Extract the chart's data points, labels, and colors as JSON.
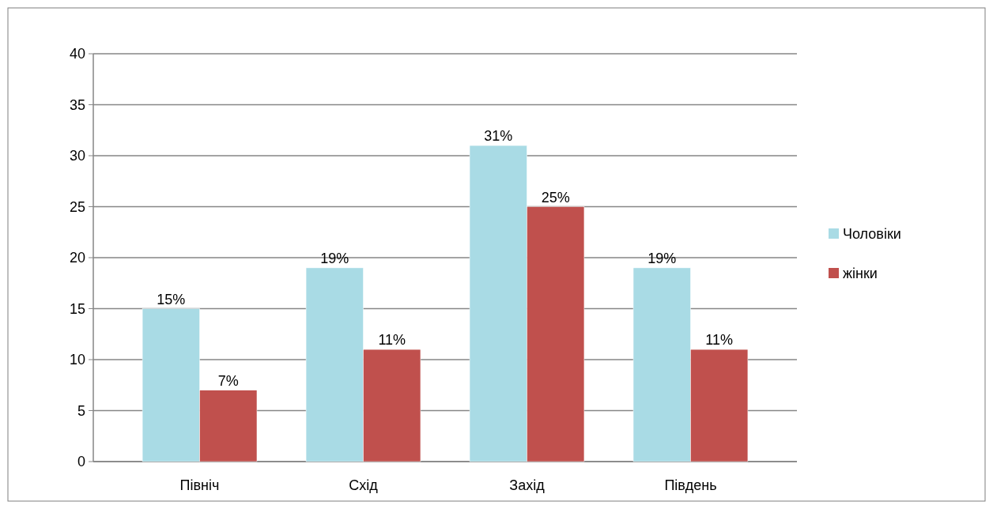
{
  "chart_data": {
    "type": "bar",
    "categories": [
      "Північ",
      "Схід",
      "Захід",
      "Південь"
    ],
    "series": [
      {
        "name": "Чоловіки",
        "color": "#a9dbe5",
        "values": [
          15,
          19,
          31,
          19
        ],
        "value_labels": [
          "15%",
          "19%",
          "31%",
          "19%"
        ]
      },
      {
        "name": "жінки",
        "color": "#c0504d",
        "values": [
          7,
          11,
          25,
          11
        ],
        "value_labels": [
          "7%",
          "11%",
          "25%",
          "11%"
        ]
      }
    ],
    "ylim": [
      0,
      40
    ],
    "yticks": [
      0,
      5,
      10,
      15,
      20,
      25,
      30,
      35,
      40
    ],
    "grid": "y",
    "legend": "right"
  }
}
